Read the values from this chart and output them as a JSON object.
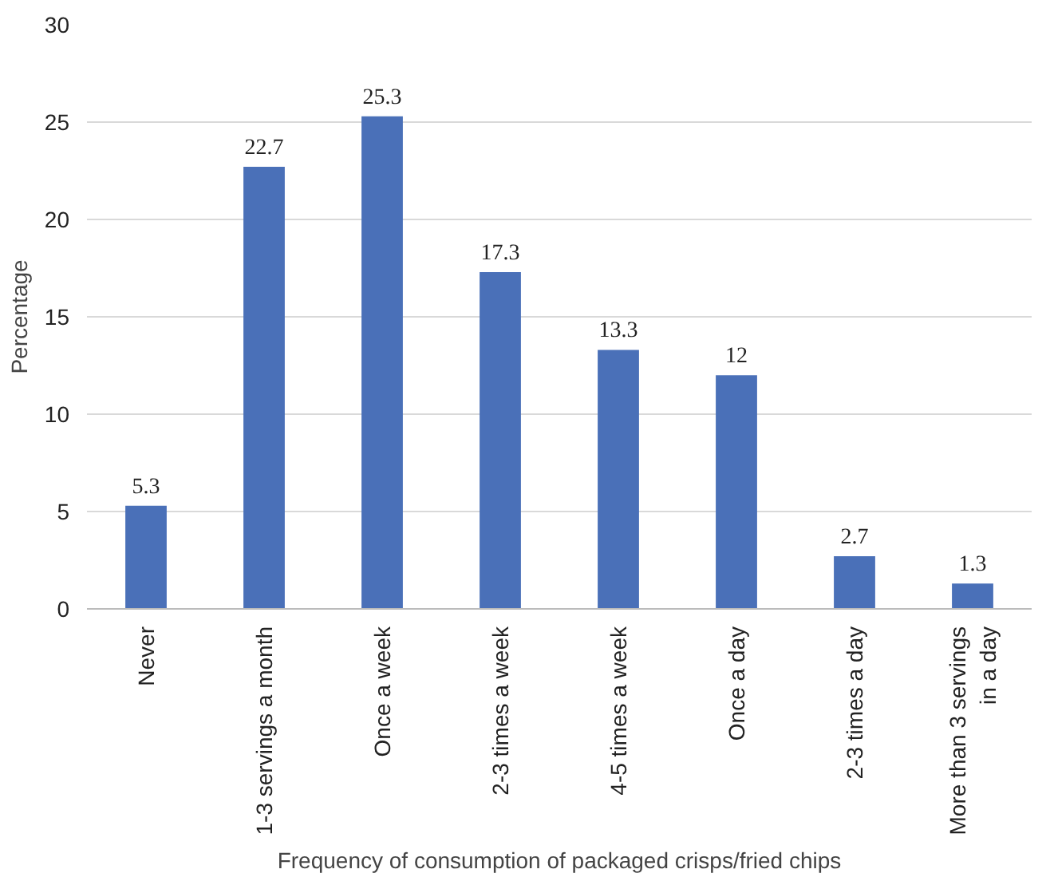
{
  "chart_data": {
    "type": "bar",
    "xlabel": "Frequency of consumption of packaged crisps/fried chips",
    "ylabel": "Percentage",
    "categories": [
      "Never",
      "1-3 servings a month",
      "Once a week",
      "2-3 times a week",
      "4-5 times a week",
      "Once a day",
      "2-3 times a day",
      "More than 3 servings in a day"
    ],
    "values": [
      5.3,
      22.7,
      25.3,
      17.3,
      13.3,
      12,
      2.7,
      1.3
    ],
    "color": "#4a70b8",
    "ylim": [
      0,
      30
    ],
    "yticks": [
      0,
      5,
      10,
      15,
      20,
      25,
      30
    ],
    "grid": "y",
    "data_labels": true
  }
}
